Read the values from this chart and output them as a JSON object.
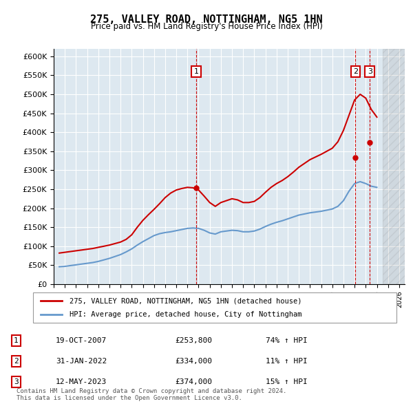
{
  "title": "275, VALLEY ROAD, NOTTINGHAM, NG5 1HN",
  "subtitle": "Price paid vs. HM Land Registry's House Price Index (HPI)",
  "ylabel_ticks": [
    "£0",
    "£50K",
    "£100K",
    "£150K",
    "£200K",
    "£250K",
    "£300K",
    "£350K",
    "£400K",
    "£450K",
    "£500K",
    "£550K",
    "£600K"
  ],
  "ylim": [
    0,
    620000
  ],
  "yticks": [
    0,
    50000,
    100000,
    150000,
    200000,
    250000,
    300000,
    350000,
    400000,
    450000,
    500000,
    550000,
    600000
  ],
  "xlim_start": 1995.0,
  "xlim_end": 2026.5,
  "hpi_color": "#6699cc",
  "price_color": "#cc0000",
  "bg_color": "#dde8f0",
  "legend_label_red": "275, VALLEY ROAD, NOTTINGHAM, NG5 1HN (detached house)",
  "legend_label_blue": "HPI: Average price, detached house, City of Nottingham",
  "transactions": [
    {
      "num": 1,
      "date": "19-OCT-2007",
      "price": "£253,800",
      "pct": "74%",
      "year": 2007.8
    },
    {
      "num": 2,
      "date": "31-JAN-2022",
      "price": "£334,000",
      "pct": "11%",
      "year": 2022.08
    },
    {
      "num": 3,
      "date": "12-MAY-2023",
      "price": "£374,000",
      "pct": "15%",
      "year": 2023.37
    }
  ],
  "footer": "Contains HM Land Registry data © Crown copyright and database right 2024.\nThis data is licensed under the Open Government Licence v3.0.",
  "hpi_data": {
    "years": [
      1995.5,
      1996.0,
      1996.5,
      1997.0,
      1997.5,
      1998.0,
      1998.5,
      1999.0,
      1999.5,
      2000.0,
      2000.5,
      2001.0,
      2001.5,
      2002.0,
      2002.5,
      2003.0,
      2003.5,
      2004.0,
      2004.5,
      2005.0,
      2005.5,
      2006.0,
      2006.5,
      2007.0,
      2007.5,
      2008.0,
      2008.5,
      2009.0,
      2009.5,
      2010.0,
      2010.5,
      2011.0,
      2011.5,
      2012.0,
      2012.5,
      2013.0,
      2013.5,
      2014.0,
      2014.5,
      2015.0,
      2015.5,
      2016.0,
      2016.5,
      2017.0,
      2017.5,
      2018.0,
      2018.5,
      2019.0,
      2019.5,
      2020.0,
      2020.5,
      2021.0,
      2021.5,
      2022.0,
      2022.5,
      2023.0,
      2023.5,
      2024.0
    ],
    "values": [
      46000,
      47000,
      49000,
      51000,
      53000,
      55000,
      57000,
      60000,
      64000,
      68000,
      73000,
      78000,
      85000,
      93000,
      103000,
      112000,
      120000,
      128000,
      133000,
      136000,
      138000,
      141000,
      144000,
      147000,
      148000,
      147000,
      142000,
      135000,
      132000,
      138000,
      140000,
      142000,
      141000,
      138000,
      138000,
      140000,
      145000,
      152000,
      158000,
      163000,
      167000,
      172000,
      177000,
      182000,
      185000,
      188000,
      190000,
      192000,
      195000,
      198000,
      205000,
      220000,
      245000,
      265000,
      270000,
      265000,
      258000,
      255000
    ]
  },
  "price_data": {
    "years": [
      1995.5,
      1996.0,
      1996.5,
      1997.0,
      1997.5,
      1998.0,
      1998.5,
      1999.0,
      1999.5,
      2000.0,
      2000.5,
      2001.0,
      2001.5,
      2002.0,
      2002.5,
      2003.0,
      2003.5,
      2004.0,
      2004.5,
      2005.0,
      2005.5,
      2006.0,
      2006.5,
      2007.0,
      2007.5,
      2008.0,
      2008.5,
      2009.0,
      2009.5,
      2010.0,
      2010.5,
      2011.0,
      2011.5,
      2012.0,
      2012.5,
      2013.0,
      2013.5,
      2014.0,
      2014.5,
      2015.0,
      2015.5,
      2016.0,
      2016.5,
      2017.0,
      2017.5,
      2018.0,
      2018.5,
      2019.0,
      2019.5,
      2020.0,
      2020.5,
      2021.0,
      2021.5,
      2022.0,
      2022.5,
      2023.0,
      2023.5,
      2024.0
    ],
    "values": [
      82000,
      84000,
      86000,
      88000,
      90000,
      92000,
      94000,
      97000,
      100000,
      103000,
      107000,
      111000,
      118000,
      130000,
      150000,
      168000,
      183000,
      197000,
      212000,
      228000,
      240000,
      248000,
      252000,
      255000,
      253800,
      248000,
      232000,
      215000,
      205000,
      215000,
      220000,
      225000,
      222000,
      215000,
      215000,
      218000,
      228000,
      242000,
      255000,
      265000,
      273000,
      283000,
      295000,
      308000,
      318000,
      328000,
      335000,
      342000,
      350000,
      358000,
      375000,
      405000,
      445000,
      485000,
      500000,
      490000,
      460000,
      440000
    ]
  }
}
